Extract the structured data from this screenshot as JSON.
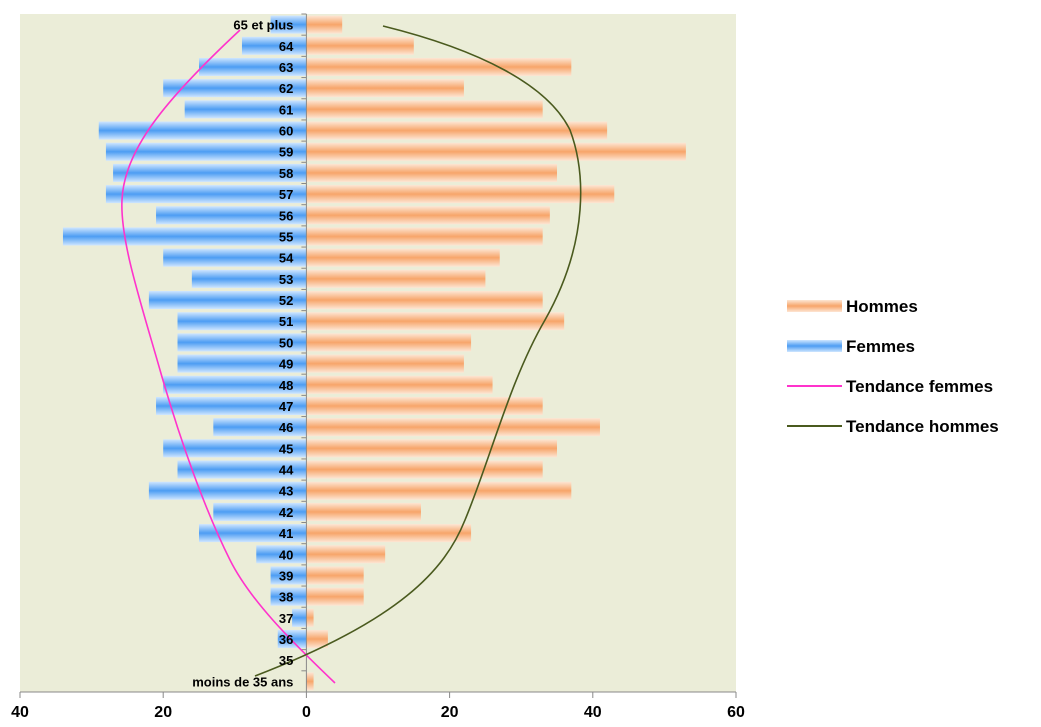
{
  "chart_data": {
    "type": "bar",
    "orientation": "horizontal",
    "categories": [
      "moins de 35 ans",
      "35",
      "36",
      "37",
      "38",
      "39",
      "40",
      "41",
      "42",
      "43",
      "44",
      "45",
      "46",
      "47",
      "48",
      "49",
      "50",
      "51",
      "52",
      "53",
      "54",
      "55",
      "56",
      "57",
      "58",
      "59",
      "60",
      "61",
      "62",
      "63",
      "64",
      "65 et plus"
    ],
    "series": [
      {
        "name": "Hommes",
        "color": "#f7a56a",
        "values": [
          1,
          0,
          3,
          1,
          8,
          8,
          11,
          23,
          16,
          37,
          33,
          35,
          41,
          33,
          26,
          22,
          23,
          36,
          33,
          25,
          27,
          33,
          34,
          43,
          35,
          53,
          42,
          33,
          22,
          37,
          15,
          5
        ]
      },
      {
        "name": "Femmes",
        "color": "#5aa5f5",
        "values": [
          0,
          0,
          4,
          2,
          5,
          5,
          7,
          15,
          13,
          22,
          18,
          20,
          13,
          21,
          20,
          18,
          18,
          18,
          22,
          16,
          20,
          34,
          21,
          28,
          27,
          28,
          29,
          17,
          20,
          15,
          9,
          5
        ]
      }
    ],
    "trendlines": [
      {
        "name": "Tendance femmes",
        "color": "#ff33cc"
      },
      {
        "name": "Tendance hommes",
        "color": "#4a5a1e"
      }
    ],
    "xlim": [
      -40,
      60
    ],
    "xticks": [
      "40",
      "20",
      "0",
      "20",
      "40",
      "60"
    ],
    "legend_position": "right",
    "plot_background": "#ebedd8"
  }
}
